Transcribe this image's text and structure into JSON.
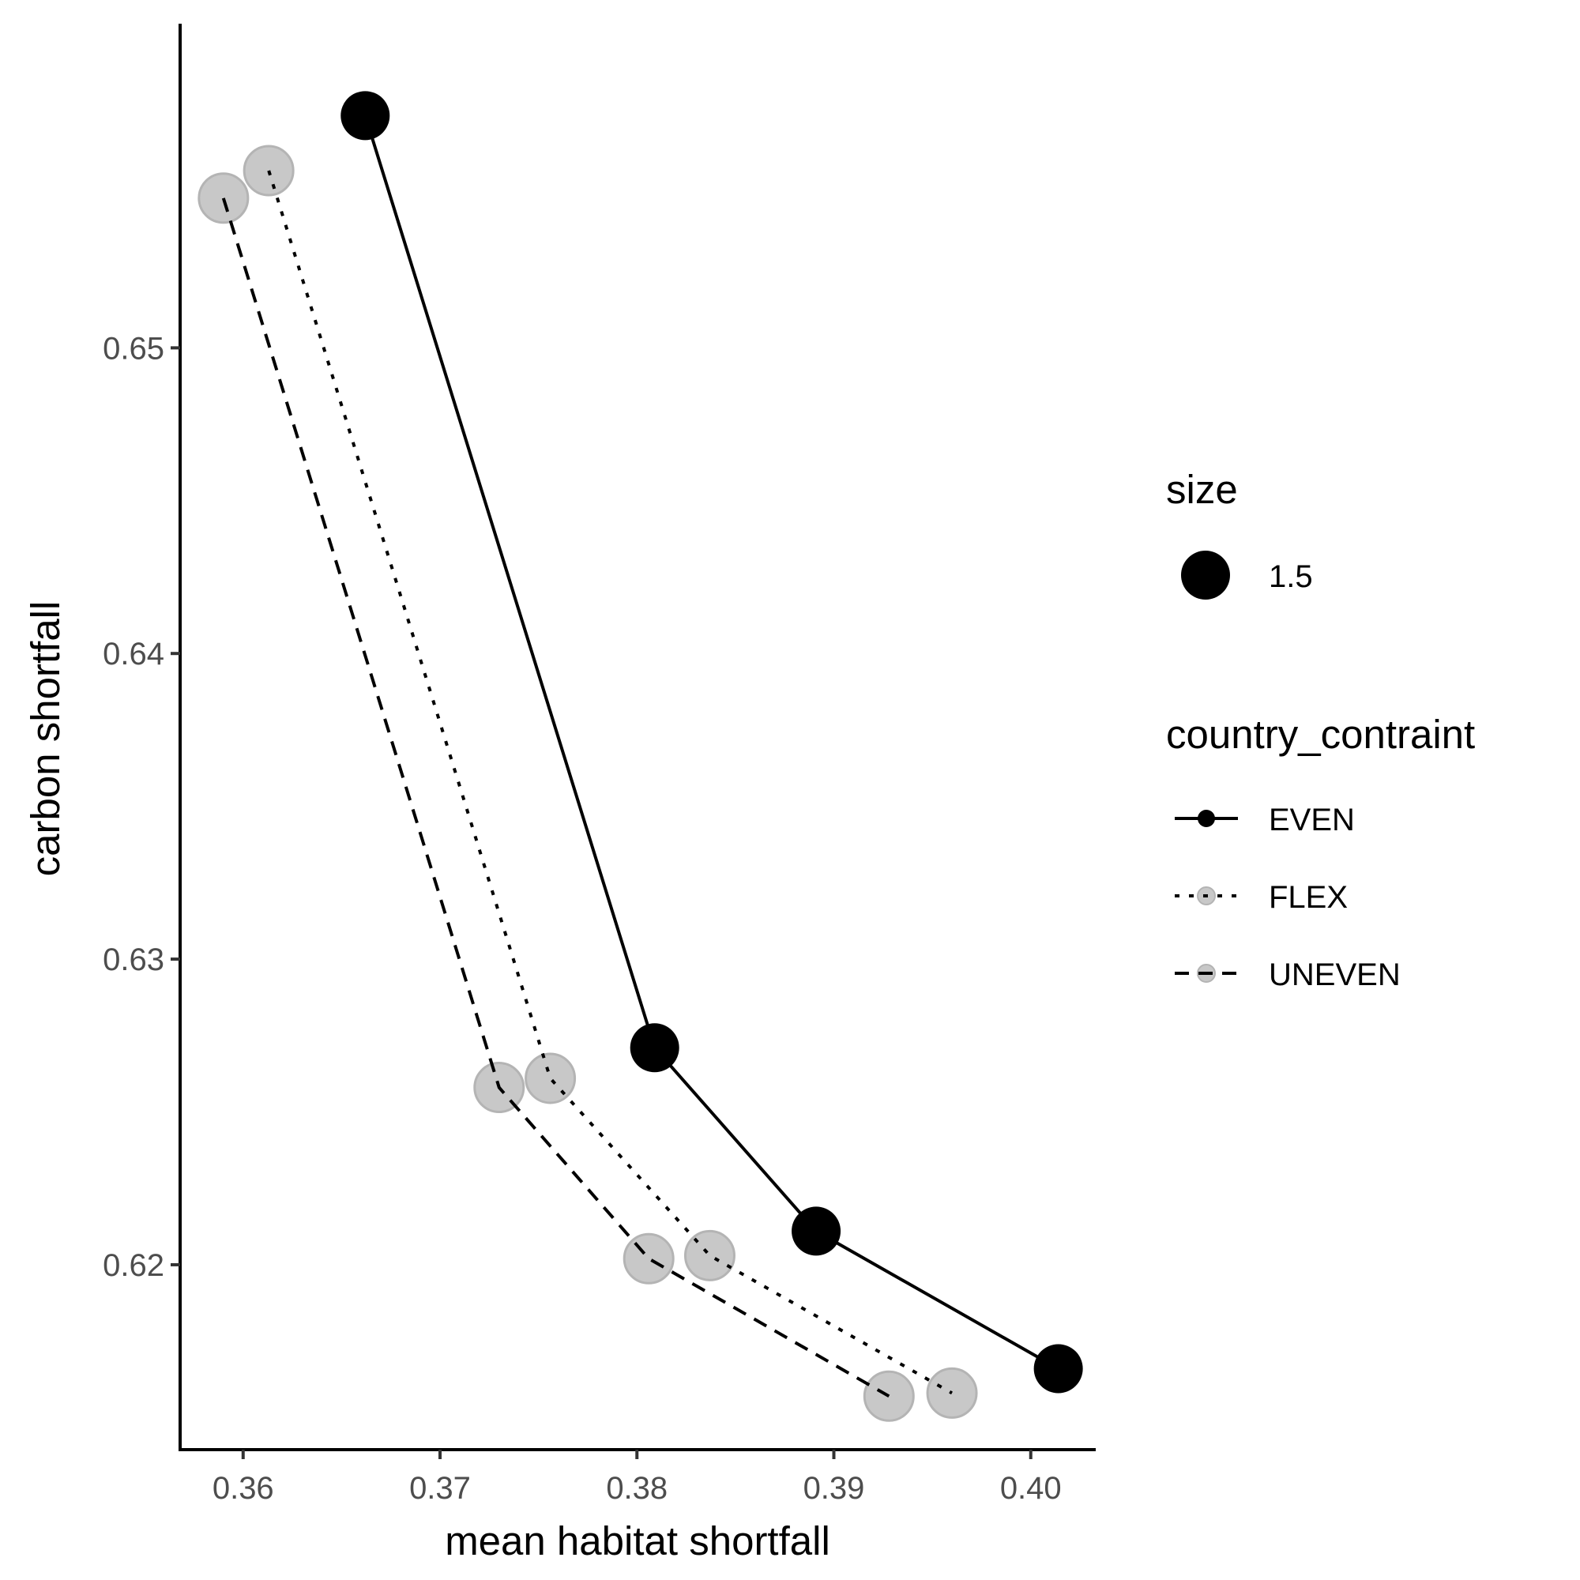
{
  "chart_data": {
    "type": "line",
    "xlabel": "mean habitat shortfall",
    "ylabel": "carbon shortfall",
    "xlim": [
      0.3568,
      0.4033
    ],
    "ylim": [
      0.61395,
      0.6604
    ],
    "x_ticks": [
      0.36,
      0.37,
      0.38,
      0.39,
      0.4
    ],
    "x_tick_labels": [
      "0.36",
      "0.37",
      "0.38",
      "0.39",
      "0.40"
    ],
    "y_ticks": [
      0.62,
      0.63,
      0.64,
      0.65
    ],
    "y_tick_labels": [
      "0.62",
      "0.63",
      "0.64",
      "0.65"
    ],
    "grid": false,
    "series": [
      {
        "name": "EVEN",
        "line_style": "solid",
        "point_color": "#000000",
        "points": [
          {
            "x": 0.3662,
            "y": 0.6576
          },
          {
            "x": 0.3809,
            "y": 0.6271
          },
          {
            "x": 0.3891,
            "y": 0.6211
          },
          {
            "x": 0.4014,
            "y": 0.6166
          }
        ]
      },
      {
        "name": "FLEX",
        "line_style": "dotted",
        "point_color": "#c8c8c8",
        "points": [
          {
            "x": 0.3613,
            "y": 0.6558
          },
          {
            "x": 0.3756,
            "y": 0.6261
          },
          {
            "x": 0.3837,
            "y": 0.6203
          },
          {
            "x": 0.396,
            "y": 0.6158
          }
        ]
      },
      {
        "name": "UNEVEN",
        "line_style": "dashed",
        "point_color": "#c8c8c8",
        "points": [
          {
            "x": 0.359,
            "y": 0.6549
          },
          {
            "x": 0.373,
            "y": 0.6258
          },
          {
            "x": 0.3806,
            "y": 0.6202
          },
          {
            "x": 0.3928,
            "y": 0.6157
          }
        ]
      }
    ],
    "legend": {
      "placement": "right",
      "size_title": "size",
      "size_label": "1.5",
      "group_title": "country_contraint"
    }
  }
}
